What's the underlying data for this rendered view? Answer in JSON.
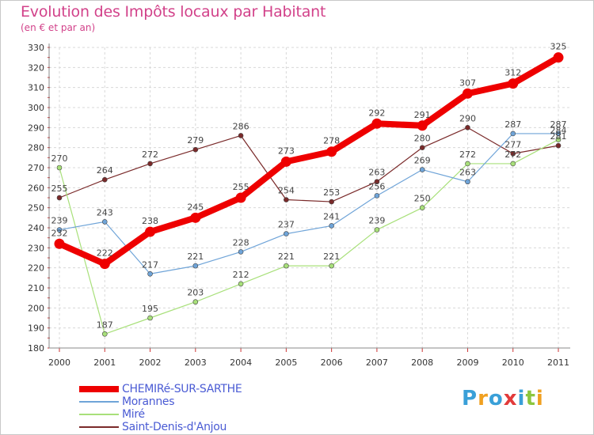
{
  "chart_data": {
    "type": "line",
    "title": "Evolution des Impôts locaux par Habitant",
    "subtitle": "(en € et par an)",
    "xlabel": "",
    "ylabel": "",
    "categories": [
      "2000",
      "2001",
      "2002",
      "2003",
      "2004",
      "2005",
      "2006",
      "2007",
      "2008",
      "2009",
      "2010",
      "2011"
    ],
    "ylim": [
      180,
      330
    ],
    "yticks": [
      180,
      190,
      200,
      210,
      220,
      230,
      240,
      250,
      260,
      270,
      280,
      290,
      300,
      310,
      320,
      330
    ],
    "grid": true,
    "legend_position": "bottom-left",
    "series": [
      {
        "name": "Saint-Denis-d'Anjou",
        "color": "#7a2a2a",
        "width": 1.2,
        "values": [
          255,
          264,
          272,
          279,
          286,
          254,
          253,
          263,
          280,
          290,
          277,
          281
        ]
      },
      {
        "name": "Miré",
        "color": "#a8e07a",
        "width": 1.2,
        "values": [
          270,
          187,
          195,
          203,
          212,
          221,
          221,
          239,
          250,
          272,
          272,
          284
        ]
      },
      {
        "name": "Morannes",
        "color": "#6fa4d8",
        "width": 1.2,
        "values": [
          239,
          243,
          217,
          221,
          228,
          237,
          241,
          256,
          269,
          263,
          287,
          287
        ]
      },
      {
        "name": "CHEMIRé-SUR-SARTHE",
        "color": "#ee0000",
        "width": 8,
        "values": [
          232,
          222,
          238,
          245,
          255,
          273,
          278,
          292,
          291,
          307,
          312,
          325
        ]
      }
    ]
  },
  "legend": {
    "items": [
      {
        "label": "CHEMIRé-SUR-SARTHE",
        "color": "#ee0000",
        "thickness": 8
      },
      {
        "label": "Morannes",
        "color": "#6fa4d8",
        "thickness": 2
      },
      {
        "label": "Miré",
        "color": "#a8e07a",
        "thickness": 2
      },
      {
        "label": "Saint-Denis-d'Anjou",
        "color": "#7a2a2a",
        "thickness": 2
      }
    ]
  },
  "logo": {
    "text": "Proxiti",
    "letters": [
      {
        "ch": "P",
        "color": "#3aa0d8"
      },
      {
        "ch": "r",
        "color": "#f0a020"
      },
      {
        "ch": "o",
        "color": "#3aa0d8"
      },
      {
        "ch": "x",
        "color": "#e23a3a"
      },
      {
        "ch": "i",
        "color": "#3aa0d8"
      },
      {
        "ch": "t",
        "color": "#8cc63e"
      },
      {
        "ch": "i",
        "color": "#f0a020"
      }
    ]
  }
}
